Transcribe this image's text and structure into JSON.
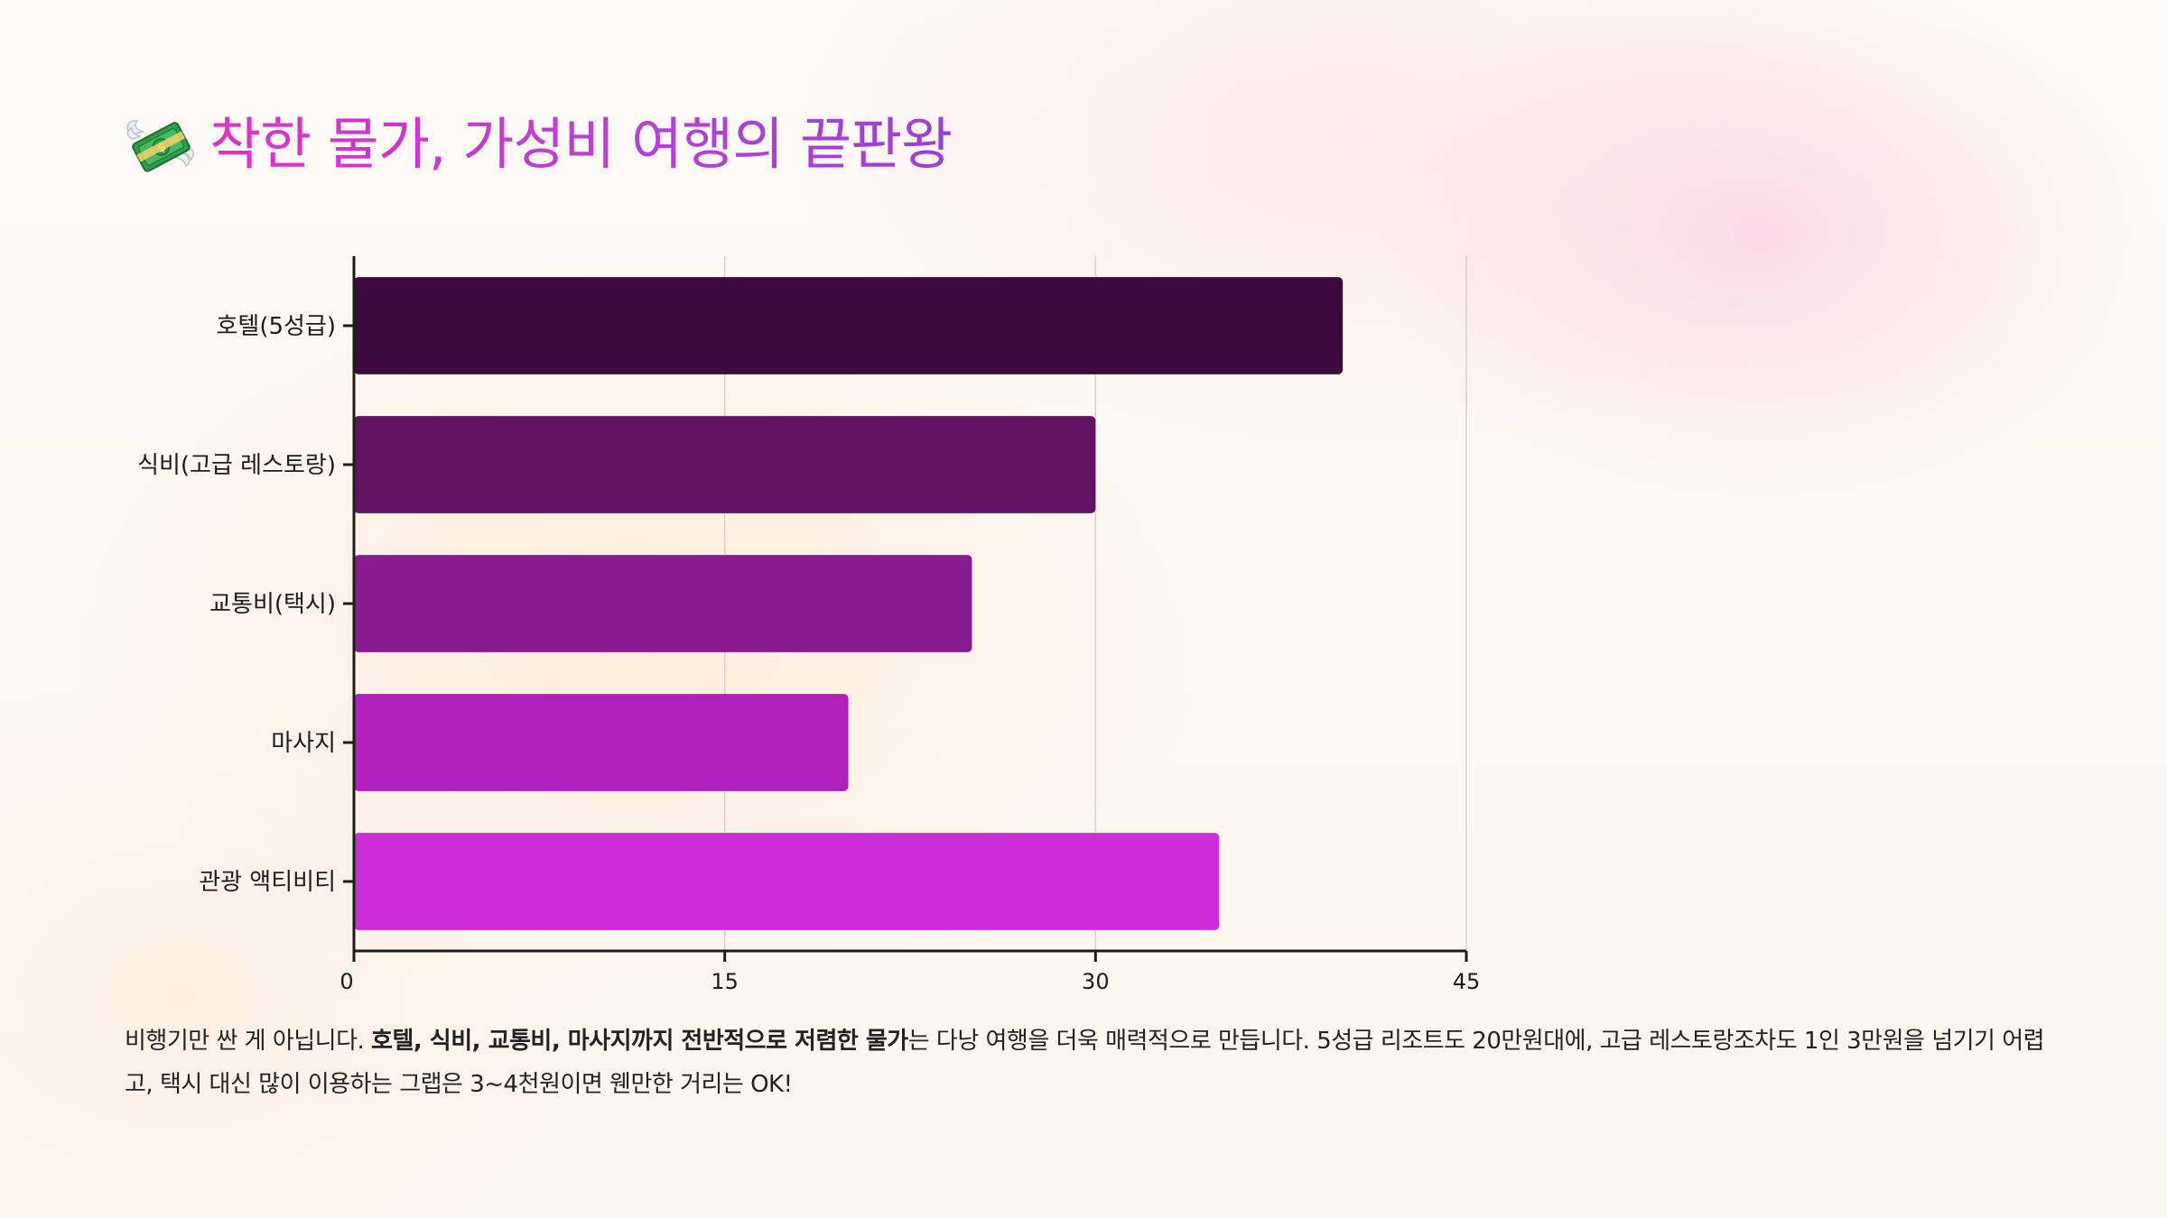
{
  "title": {
    "icon": "money-with-wings-icon",
    "text": "착한 물가, 가성비 여행의 끝판왕"
  },
  "colors": {
    "title_start": "#e22fc9",
    "title_end": "#9a3fd6",
    "bars": [
      "#3d0a3e",
      "#621463",
      "#8a1a8f",
      "#b120bd",
      "#cc2ed9"
    ],
    "grid": "#d9d0cc",
    "axis": "#1c1c1c"
  },
  "chart_data": {
    "type": "bar",
    "orientation": "horizontal",
    "categories": [
      "호텔(5성급)",
      "식비(고급 레스토랑)",
      "교통비(택시)",
      "마사지",
      "관광 액티비티"
    ],
    "values": [
      40,
      30,
      25,
      20,
      35
    ],
    "xlim": [
      0,
      45
    ],
    "xticks": [
      0,
      15,
      30,
      45
    ],
    "grid": true,
    "legend": "none"
  },
  "description": {
    "part1": "비행기만 싼 게 아닙니다. ",
    "bold": "호텔, 식비, 교통비, 마사지까지 전반적으로 저렴한 물가",
    "part2": "는 다낭 여행을 더욱 매력적으로 만듭니다. 5성급 리조트도 20만원대에, 고급 레스토랑조차도 1인 3만원을 넘기기 어렵고, 택시 대신 많이 이용하는 그랩은 3~4천원이면 웬만한 거리는 OK!"
  }
}
